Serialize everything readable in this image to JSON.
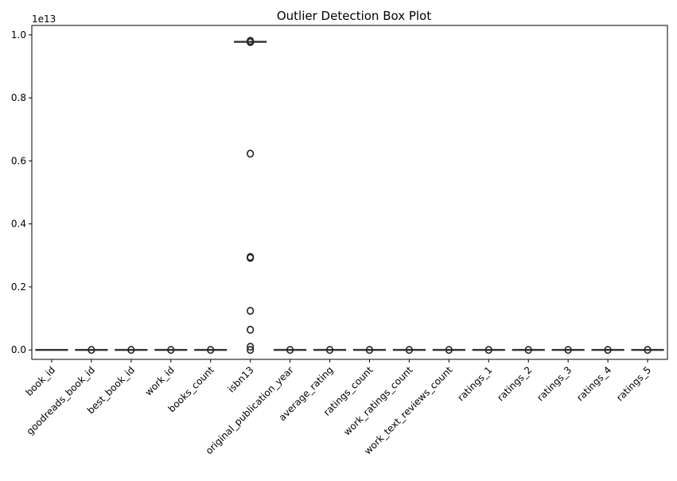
{
  "chart_data": {
    "type": "box",
    "title": "Outlier Detection Box Plot",
    "xlabel": "",
    "ylabel": "",
    "y_offset_label": "1e13",
    "ylim": [
      -0.03,
      1.03
    ],
    "yticks": [
      0.0,
      0.2,
      0.4,
      0.6,
      0.8,
      1.0
    ],
    "ytick_labels": [
      "0.0",
      "0.2",
      "0.4",
      "0.6",
      "0.8",
      "1.0"
    ],
    "grid": false,
    "categories": [
      "book_id",
      "goodreads_book_id",
      "best_book_id",
      "work_id",
      "books_count",
      "isbn13",
      "original_publication_year",
      "average_rating",
      "ratings_count",
      "work_ratings_count",
      "work_text_reviews_count",
      "ratings_1",
      "ratings_2",
      "ratings_3",
      "ratings_4",
      "ratings_5"
    ],
    "boxes": [
      {
        "q1": 0,
        "median": 0,
        "q3": 0,
        "whisker_low": 0,
        "whisker_high": 0,
        "outliers": []
      },
      {
        "q1": 0,
        "median": 0,
        "q3": 0,
        "whisker_low": 0,
        "whisker_high": 0,
        "outliers": [
          0.0
        ]
      },
      {
        "q1": 0,
        "median": 0,
        "q3": 0,
        "whisker_low": 0,
        "whisker_high": 0,
        "outliers": [
          0.0
        ]
      },
      {
        "q1": 0,
        "median": 0,
        "q3": 0,
        "whisker_low": 0,
        "whisker_high": 0,
        "outliers": [
          0.0
        ]
      },
      {
        "q1": 0,
        "median": 0,
        "q3": 0,
        "whisker_low": 0,
        "whisker_high": 0,
        "outliers": [
          0.0
        ]
      },
      {
        "q1": 0.978,
        "median": 0.978,
        "q3": 0.978,
        "whisker_low": 0.976,
        "whisker_high": 0.979,
        "outliers": [
          0.981,
          0.977,
          0.623,
          0.295,
          0.292,
          0.124,
          0.064,
          0.01,
          0.0
        ]
      },
      {
        "q1": 0,
        "median": 0,
        "q3": 0,
        "whisker_low": 0,
        "whisker_high": 0,
        "outliers": [
          0.0
        ]
      },
      {
        "q1": 0,
        "median": 0,
        "q3": 0,
        "whisker_low": 0,
        "whisker_high": 0,
        "outliers": [
          0.0
        ]
      },
      {
        "q1": 0,
        "median": 0,
        "q3": 0,
        "whisker_low": 0,
        "whisker_high": 0,
        "outliers": [
          0.0
        ]
      },
      {
        "q1": 0,
        "median": 0,
        "q3": 0,
        "whisker_low": 0,
        "whisker_high": 0,
        "outliers": [
          0.0
        ]
      },
      {
        "q1": 0,
        "median": 0,
        "q3": 0,
        "whisker_low": 0,
        "whisker_high": 0,
        "outliers": [
          0.0
        ]
      },
      {
        "q1": 0,
        "median": 0,
        "q3": 0,
        "whisker_low": 0,
        "whisker_high": 0,
        "outliers": [
          0.0
        ]
      },
      {
        "q1": 0,
        "median": 0,
        "q3": 0,
        "whisker_low": 0,
        "whisker_high": 0,
        "outliers": [
          0.0
        ]
      },
      {
        "q1": 0,
        "median": 0,
        "q3": 0,
        "whisker_low": 0,
        "whisker_high": 0,
        "outliers": [
          0.0
        ]
      },
      {
        "q1": 0,
        "median": 0,
        "q3": 0,
        "whisker_low": 0,
        "whisker_high": 0,
        "outliers": [
          0.0
        ]
      },
      {
        "q1": 0,
        "median": 0,
        "q3": 0,
        "whisker_low": 0,
        "whisker_high": 0,
        "outliers": [
          0.0
        ]
      }
    ],
    "colors": {
      "box_fill": "#1f77b4",
      "edge": "#333333",
      "outlier_edge": "#222222",
      "axis": "#000000"
    }
  }
}
